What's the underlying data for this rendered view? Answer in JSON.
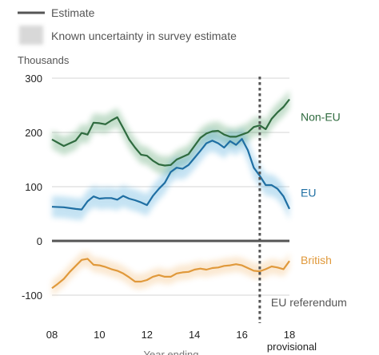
{
  "legend": {
    "estimate_label": "Estimate",
    "uncertainty_label": "Known uncertainty in survey estimate",
    "placement": "top-left"
  },
  "chart_data": {
    "type": "line",
    "ylabel": "Thousands",
    "xlabel": "Year ending",
    "ylim": [
      -130,
      300
    ],
    "xlim": [
      2008,
      2018
    ],
    "y_ticks": [
      300,
      200,
      100,
      0,
      -100
    ],
    "x_ticks": [
      {
        "value": 2008,
        "label": "08"
      },
      {
        "value": 2010,
        "label": "10"
      },
      {
        "value": 2012,
        "label": "12"
      },
      {
        "value": 2014,
        "label": "14"
      },
      {
        "value": 2016,
        "label": "16"
      },
      {
        "value": 2018,
        "label": "18"
      }
    ],
    "x_sublabel": "provisional",
    "grid": true,
    "annotations": [
      {
        "text": "EU referendum",
        "x": 2016.75,
        "style": "dotted-vertical-line"
      }
    ],
    "series": [
      {
        "name": "Non-EU",
        "color": "#2f6b3f",
        "band_color": "#2f8a4a",
        "uncertainty": 17,
        "x": [
          2008,
          2008.5,
          2009,
          2009.25,
          2009.5,
          2009.75,
          2010,
          2010.25,
          2010.5,
          2010.75,
          2011,
          2011.25,
          2011.5,
          2011.75,
          2012,
          2012.25,
          2012.5,
          2012.75,
          2013,
          2013.25,
          2013.5,
          2013.75,
          2014,
          2014.25,
          2014.5,
          2014.75,
          2015,
          2015.25,
          2015.5,
          2015.75,
          2016,
          2016.25,
          2016.5,
          2016.75,
          2017,
          2017.25,
          2017.5,
          2017.75,
          2018
        ],
        "values": [
          187,
          175,
          185,
          199,
          196,
          218,
          217,
          215,
          222,
          228,
          208,
          187,
          172,
          159,
          157,
          148,
          141,
          139,
          140,
          150,
          155,
          160,
          175,
          190,
          198,
          202,
          203,
          196,
          192,
          192,
          196,
          200,
          210,
          213,
          206,
          225,
          237,
          247,
          261
        ]
      },
      {
        "name": "EU",
        "color": "#1f6fa3",
        "band_color": "#2e9ad4",
        "uncertainty": 20,
        "x": [
          2008,
          2008.5,
          2009,
          2009.25,
          2009.5,
          2009.75,
          2010,
          2010.25,
          2010.5,
          2010.75,
          2011,
          2011.25,
          2011.5,
          2011.75,
          2012,
          2012.25,
          2012.5,
          2012.75,
          2013,
          2013.25,
          2013.5,
          2013.75,
          2014,
          2014.25,
          2014.5,
          2014.75,
          2015,
          2015.25,
          2015.5,
          2015.75,
          2016,
          2016.25,
          2016.5,
          2016.75,
          2017,
          2017.25,
          2017.5,
          2017.75,
          2018
        ],
        "values": [
          63,
          62,
          59,
          58,
          73,
          82,
          78,
          79,
          79,
          76,
          83,
          78,
          75,
          71,
          66,
          83,
          96,
          107,
          127,
          135,
          133,
          140,
          153,
          166,
          180,
          185,
          180,
          172,
          184,
          177,
          188,
          167,
          135,
          120,
          103,
          103,
          96,
          82,
          59
        ]
      },
      {
        "name": "British",
        "color": "#e0993b",
        "band_color": "#f0b060",
        "uncertainty": 14,
        "x": [
          2008,
          2008.25,
          2008.5,
          2008.75,
          2009,
          2009.25,
          2009.5,
          2009.75,
          2010,
          2010.25,
          2010.5,
          2010.75,
          2011,
          2011.25,
          2011.5,
          2011.75,
          2012,
          2012.25,
          2012.5,
          2012.75,
          2013,
          2013.25,
          2013.5,
          2013.75,
          2014,
          2014.25,
          2014.5,
          2014.75,
          2015,
          2015.25,
          2015.5,
          2015.75,
          2016,
          2016.25,
          2016.5,
          2016.75,
          2017,
          2017.25,
          2017.5,
          2017.75,
          2018
        ],
        "values": [
          -87,
          -79,
          -70,
          -57,
          -46,
          -35,
          -33,
          -44,
          -45,
          -48,
          -52,
          -55,
          -60,
          -67,
          -75,
          -75,
          -72,
          -66,
          -63,
          -66,
          -66,
          -60,
          -58,
          -57,
          -53,
          -51,
          -53,
          -50,
          -49,
          -46,
          -45,
          -43,
          -45,
          -50,
          -55,
          -56,
          -52,
          -47,
          -49,
          -52,
          -37
        ]
      },
      {
        "name": "",
        "color": "#555555",
        "x": [
          2008,
          2018
        ],
        "values": [
          0,
          0
        ],
        "style": "zero-line"
      }
    ]
  }
}
